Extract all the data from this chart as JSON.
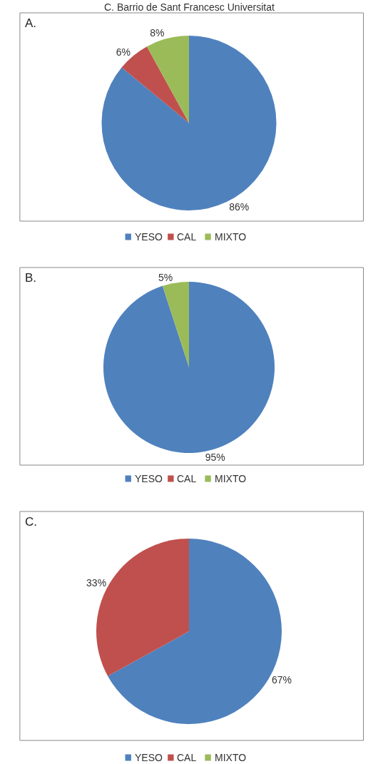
{
  "chart_data": [
    {
      "type": "pie",
      "title": "A.",
      "annotations": [
        "C. Barrio de Sant Francesc Universitat"
      ],
      "categories": [
        "YESO",
        "CAL",
        "MIXTO"
      ],
      "values": [
        86,
        6,
        8
      ],
      "value_labels": [
        "86%",
        "6%",
        "8%"
      ],
      "colors": [
        "#4f81bd",
        "#c0504d",
        "#9bbb59"
      ],
      "legend": "bottom"
    },
    {
      "type": "pie",
      "title": "B.",
      "categories": [
        "YESO",
        "CAL",
        "MIXTO"
      ],
      "values": [
        95,
        0,
        5
      ],
      "value_labels": [
        "95%",
        null,
        "5%"
      ],
      "colors": [
        "#4f81bd",
        "#c0504d",
        "#9bbb59"
      ],
      "legend": "bottom"
    },
    {
      "type": "pie",
      "title": "C.",
      "categories": [
        "YESO",
        "CAL",
        "MIXTO"
      ],
      "values": [
        67,
        33,
        0
      ],
      "value_labels": [
        "67%",
        "33%",
        null
      ],
      "colors": [
        "#4f81bd",
        "#c0504d",
        "#9bbb59"
      ],
      "legend": "bottom"
    }
  ]
}
